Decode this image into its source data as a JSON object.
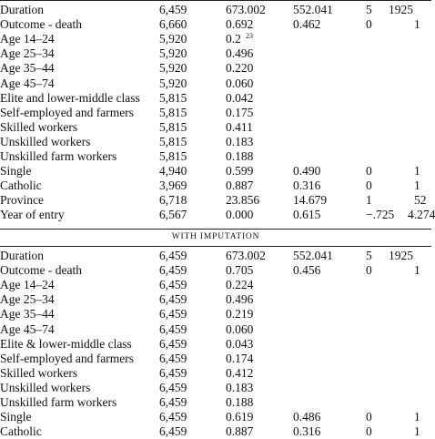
{
  "section1": {
    "rows": [
      {
        "label": "Duration",
        "n": "6,459",
        "mean": "673.002",
        "sd": "552.041",
        "min": "5",
        "max": "1925"
      },
      {
        "label": "Outcome - death",
        "n": "6,660",
        "mean": "0.692",
        "sd": "0.462",
        "min": "0",
        "max": "1"
      },
      {
        "label": "Age 14–24",
        "n": "5,920",
        "mean": "0.2",
        "mean_sup": "23",
        "sd": "",
        "min": "",
        "max": ""
      },
      {
        "label": "Age 25–34",
        "n": "5,920",
        "mean": "0.496",
        "sd": "",
        "min": "",
        "max": ""
      },
      {
        "label": "Age 35–44",
        "n": "5,920",
        "mean": "0.220",
        "sd": "",
        "min": "",
        "max": ""
      },
      {
        "label": "Age 45–74",
        "n": "5,920",
        "mean": "0.060",
        "sd": "",
        "min": "",
        "max": ""
      },
      {
        "label": "Elite and lower-middle class",
        "n": "5,815",
        "mean": "0.042",
        "sd": "",
        "min": "",
        "max": ""
      },
      {
        "label": "Self-employed and farmers",
        "n": "5,815",
        "mean": "0.175",
        "sd": "",
        "min": "",
        "max": ""
      },
      {
        "label": "Skilled workers",
        "n": "5,815",
        "mean": "0.411",
        "sd": "",
        "min": "",
        "max": ""
      },
      {
        "label": "Unskilled workers",
        "n": "5,815",
        "mean": "0.183",
        "sd": "",
        "min": "",
        "max": ""
      },
      {
        "label": "Unskilled farm workers",
        "n": "5,815",
        "mean": "0.188",
        "sd": "",
        "min": "",
        "max": ""
      },
      {
        "label": "Single",
        "n": "4,940",
        "mean": "0.599",
        "sd": "0.490",
        "min": "0",
        "max": "1"
      },
      {
        "label": "Catholic",
        "n": "3,969",
        "mean": "0.887",
        "sd": "0.316",
        "min": "0",
        "max": "1"
      },
      {
        "label": "Province",
        "n": "6,718",
        "mean": "23.856",
        "sd": "14.679",
        "min": "1",
        "max": "52"
      },
      {
        "label": "Year of entry",
        "n": "6,567",
        "mean": "0.000",
        "sd": "0.615",
        "min": "−.725",
        "max": "4.274"
      }
    ]
  },
  "subheading": "WITH IMPUTATION",
  "section2": {
    "rows": [
      {
        "label": "Duration",
        "n": "6,459",
        "mean": "673.002",
        "sd": "552.041",
        "min": "5",
        "max": "1925"
      },
      {
        "label": "Outcome - death",
        "n": "6,459",
        "mean": "0.705",
        "sd": "0.456",
        "min": "0",
        "max": "1"
      },
      {
        "label": "Age 14–24",
        "n": "6,459",
        "mean": "0.224",
        "sd": "",
        "min": "",
        "max": ""
      },
      {
        "label": "Age 25–34",
        "n": "6,459",
        "mean": "0.496",
        "sd": "",
        "min": "",
        "max": ""
      },
      {
        "label": "Age 35–44",
        "n": "6,459",
        "mean": "0.219",
        "sd": "",
        "min": "",
        "max": ""
      },
      {
        "label": "Age 45–74",
        "n": "6,459",
        "mean": "0.060",
        "sd": "",
        "min": "",
        "max": ""
      },
      {
        "label": "Elite & lower-middle class",
        "n": "6,459",
        "mean": "0.043",
        "sd": "",
        "min": "",
        "max": ""
      },
      {
        "label": "Self-employed and farmers",
        "n": "6,459",
        "mean": "0.174",
        "sd": "",
        "min": "",
        "max": ""
      },
      {
        "label": "Skilled workers",
        "n": "6,459",
        "mean": "0.412",
        "sd": "",
        "min": "",
        "max": ""
      },
      {
        "label": "Unskilled workers",
        "n": "6,459",
        "mean": "0.183",
        "sd": "",
        "min": "",
        "max": ""
      },
      {
        "label": "Unskilled farm workers",
        "n": "6,459",
        "mean": "0.188",
        "sd": "",
        "min": "",
        "max": ""
      },
      {
        "label": "Single",
        "n": "6,459",
        "mean": "0.619",
        "sd": "0.486",
        "min": "0",
        "max": "1"
      },
      {
        "label": "Catholic",
        "n": "6,459",
        "mean": "0.887",
        "sd": "0.316",
        "min": "0",
        "max": "1"
      }
    ]
  }
}
